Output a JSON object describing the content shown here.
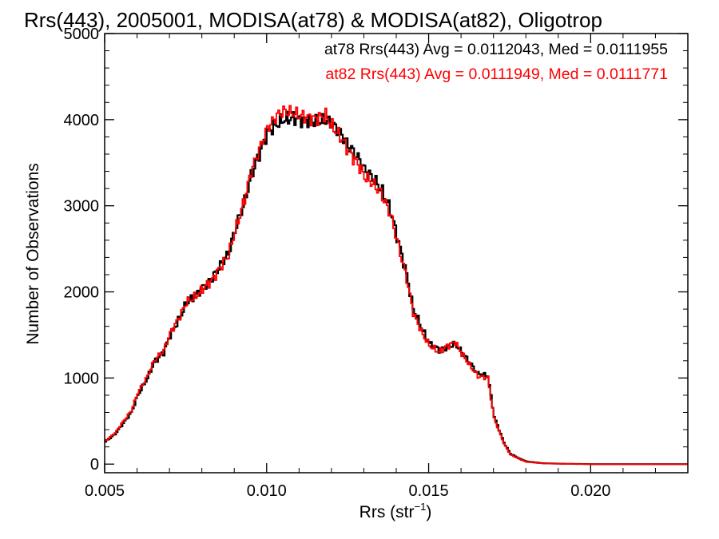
{
  "chart_data": {
    "type": "line",
    "title": "Rrs(443), 2005001, MODISA(at78) & MODISA(at82), Oligotrop",
    "xlabel_main": "Rrs (str",
    "xlabel_sup": "−1",
    "xlabel_close": ")",
    "ylabel": "Number of Observations",
    "xlim": [
      0.005,
      0.023
    ],
    "ylim": [
      -100,
      5000
    ],
    "x_ticks": [
      0.005,
      0.01,
      0.015,
      0.02
    ],
    "x_tick_labels": [
      "0.005",
      "0.010",
      "0.015",
      "0.020"
    ],
    "y_ticks": [
      0,
      1000,
      2000,
      3000,
      4000,
      5000
    ],
    "y_tick_labels": [
      "0",
      "1000",
      "2000",
      "3000",
      "4000",
      "5000"
    ],
    "style": "histogram-step",
    "grid": false,
    "annotations": [
      {
        "text": "at78 Rrs(443) Avg = 0.0112043, Med = 0.0111955",
        "color": "#000000"
      },
      {
        "text": "at82 Rrs(443) Avg = 0.0111949, Med = 0.0111771",
        "color": "#ff0000"
      }
    ],
    "series": [
      {
        "name": "at78",
        "color": "#000000",
        "x": [
          0.005,
          0.0053,
          0.0055,
          0.0058,
          0.006,
          0.0063,
          0.0065,
          0.0068,
          0.007,
          0.0073,
          0.0075,
          0.0078,
          0.008,
          0.0083,
          0.0085,
          0.0088,
          0.009,
          0.0093,
          0.0095,
          0.0098,
          0.01,
          0.0103,
          0.0105,
          0.0108,
          0.011,
          0.0113,
          0.0115,
          0.0118,
          0.012,
          0.0123,
          0.0125,
          0.0128,
          0.013,
          0.0133,
          0.0135,
          0.0138,
          0.014,
          0.0143,
          0.0145,
          0.0148,
          0.015,
          0.0153,
          0.0155,
          0.0158,
          0.016,
          0.0163,
          0.0165,
          0.0168,
          0.017,
          0.0173,
          0.0175,
          0.0178,
          0.018,
          0.0185,
          0.019,
          0.02,
          0.021,
          0.023
        ],
        "y": [
          260,
          350,
          450,
          600,
          800,
          1000,
          1180,
          1300,
          1500,
          1700,
          1870,
          1960,
          2050,
          2160,
          2280,
          2450,
          2720,
          3050,
          3350,
          3650,
          3850,
          3950,
          4000,
          4020,
          4000,
          3990,
          3980,
          3990,
          3950,
          3820,
          3700,
          3560,
          3420,
          3300,
          3200,
          2950,
          2650,
          2200,
          1800,
          1550,
          1400,
          1330,
          1350,
          1400,
          1300,
          1150,
          1050,
          1030,
          550,
          250,
          120,
          60,
          30,
          10,
          5,
          0,
          0,
          0
        ]
      },
      {
        "name": "at82",
        "color": "#ff0000",
        "x": [
          0.005,
          0.0053,
          0.0055,
          0.0058,
          0.006,
          0.0063,
          0.0065,
          0.0068,
          0.007,
          0.0073,
          0.0075,
          0.0078,
          0.008,
          0.0083,
          0.0085,
          0.0088,
          0.009,
          0.0093,
          0.0095,
          0.0098,
          0.01,
          0.0103,
          0.0105,
          0.0108,
          0.011,
          0.0113,
          0.0115,
          0.0118,
          0.012,
          0.0123,
          0.0125,
          0.0128,
          0.013,
          0.0133,
          0.0135,
          0.0138,
          0.014,
          0.0143,
          0.0145,
          0.0148,
          0.015,
          0.0153,
          0.0155,
          0.0158,
          0.016,
          0.0163,
          0.0165,
          0.0168,
          0.017,
          0.0173,
          0.0175,
          0.0178,
          0.018,
          0.0185,
          0.019,
          0.02,
          0.021,
          0.023
        ],
        "y": [
          270,
          360,
          470,
          620,
          830,
          1020,
          1200,
          1320,
          1520,
          1720,
          1880,
          1950,
          2030,
          2140,
          2260,
          2430,
          2700,
          3080,
          3400,
          3700,
          3900,
          4050,
          4100,
          4080,
          4050,
          4020,
          4010,
          4050,
          3920,
          3780,
          3640,
          3480,
          3340,
          3240,
          3150,
          2900,
          2600,
          2150,
          1760,
          1500,
          1380,
          1300,
          1360,
          1420,
          1280,
          1120,
          1020,
          1000,
          530,
          240,
          110,
          55,
          25,
          8,
          4,
          0,
          0,
          0
        ]
      }
    ]
  }
}
